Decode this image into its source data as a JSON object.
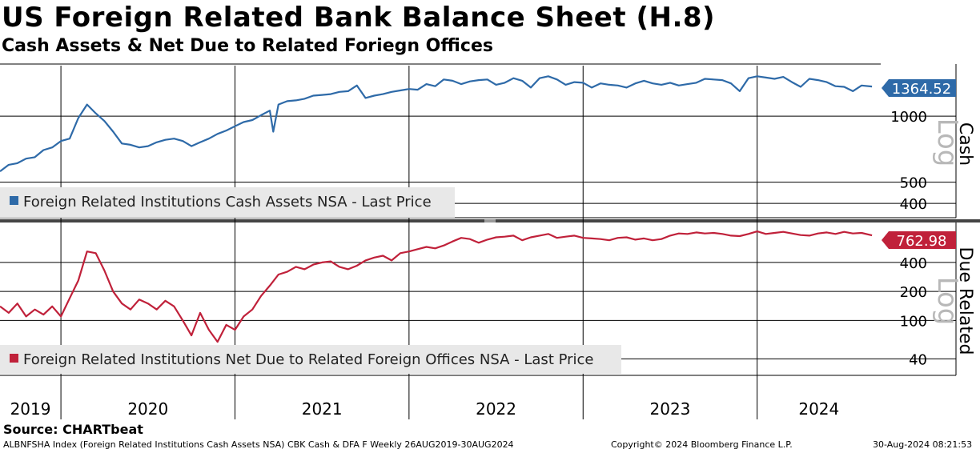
{
  "header": {
    "title": "US Foreign Related Bank Balance Sheet (H.8)",
    "subtitle": "Cash Assets & Net Due to Related Foriegn Offices"
  },
  "footer": {
    "source": "Source: CHARTbeat",
    "index_info": "ALBNFSHA Index (Foreign Related Institutions Cash Assets NSA) CBK Cash & DFA F  Weekly 26AUG2019-30AUG2024",
    "copyright": "Copyright© 2024 Bloomberg Finance L.P.",
    "timestamp": "30-Aug-2024 08:21:53"
  },
  "colors": {
    "cash": "#2e6aa8",
    "due": "#c0213a"
  },
  "chart_data": [
    {
      "type": "line",
      "panel": "Cash",
      "scale": "Log",
      "ylim": [
        350,
        1700
      ],
      "y_ticks": [
        400,
        500,
        1000
      ],
      "legend": "Foreign Related Institutions Cash Assets NSA - Last Price",
      "last_label": "1364.52",
      "x_ticks": [
        "2019",
        "2020",
        "2021",
        "2022",
        "2023",
        "2024"
      ],
      "x": [
        2019.65,
        2019.7,
        2019.75,
        2019.8,
        2019.85,
        2019.9,
        2019.95,
        2020.0,
        2020.05,
        2020.1,
        2020.15,
        2020.2,
        2020.25,
        2020.3,
        2020.35,
        2020.4,
        2020.45,
        2020.5,
        2020.55,
        2020.6,
        2020.65,
        2020.7,
        2020.75,
        2020.8,
        2020.85,
        2020.9,
        2020.95,
        2021.0,
        2021.05,
        2021.1,
        2021.15,
        2021.2,
        2021.22,
        2021.25,
        2021.3,
        2021.35,
        2021.4,
        2021.45,
        2021.5,
        2021.55,
        2021.6,
        2021.65,
        2021.7,
        2021.75,
        2021.8,
        2021.85,
        2021.9,
        2021.95,
        2022.0,
        2022.05,
        2022.1,
        2022.15,
        2022.2,
        2022.25,
        2022.3,
        2022.35,
        2022.4,
        2022.45,
        2022.5,
        2022.55,
        2022.6,
        2022.65,
        2022.7,
        2022.75,
        2022.8,
        2022.85,
        2022.9,
        2022.95,
        2023.0,
        2023.05,
        2023.1,
        2023.15,
        2023.2,
        2023.25,
        2023.3,
        2023.35,
        2023.4,
        2023.45,
        2023.5,
        2023.55,
        2023.6,
        2023.65,
        2023.7,
        2023.75,
        2023.8,
        2023.85,
        2023.9,
        2023.95,
        2024.0,
        2024.05,
        2024.1,
        2024.15,
        2024.2,
        2024.25,
        2024.3,
        2024.35,
        2024.4,
        2024.45,
        2024.5,
        2024.55,
        2024.6,
        2024.66
      ],
      "values": [
        560,
        600,
        610,
        640,
        650,
        700,
        720,
        770,
        790,
        980,
        1130,
        1030,
        950,
        850,
        750,
        740,
        720,
        730,
        760,
        780,
        790,
        770,
        730,
        760,
        790,
        830,
        860,
        900,
        940,
        960,
        1010,
        1060,
        850,
        1130,
        1170,
        1180,
        1200,
        1240,
        1250,
        1260,
        1290,
        1300,
        1380,
        1210,
        1240,
        1260,
        1290,
        1310,
        1330,
        1320,
        1400,
        1370,
        1470,
        1450,
        1400,
        1440,
        1460,
        1470,
        1390,
        1420,
        1490,
        1450,
        1350,
        1490,
        1520,
        1470,
        1390,
        1430,
        1420,
        1350,
        1410,
        1390,
        1380,
        1350,
        1410,
        1450,
        1410,
        1390,
        1420,
        1380,
        1400,
        1420,
        1480,
        1470,
        1460,
        1410,
        1300,
        1490,
        1520,
        1500,
        1480,
        1510,
        1430,
        1360,
        1480,
        1460,
        1430,
        1370,
        1360,
        1300,
        1380,
        1364.52
      ]
    },
    {
      "type": "line",
      "panel": "Due Related",
      "scale": "Log",
      "ylim": [
        28,
        1000
      ],
      "y_ticks": [
        40,
        100,
        200,
        400
      ],
      "legend": "Foreign Related Institutions Net Due to Related Foreign Offices NSA - Last Price",
      "last_label": "762.98",
      "x_ticks": [
        "2019",
        "2020",
        "2021",
        "2022",
        "2023",
        "2024"
      ],
      "x": [
        2019.65,
        2019.7,
        2019.75,
        2019.8,
        2019.85,
        2019.9,
        2019.95,
        2020.0,
        2020.05,
        2020.1,
        2020.15,
        2020.2,
        2020.25,
        2020.3,
        2020.35,
        2020.4,
        2020.45,
        2020.5,
        2020.55,
        2020.6,
        2020.65,
        2020.7,
        2020.75,
        2020.8,
        2020.85,
        2020.9,
        2020.95,
        2021.0,
        2021.05,
        2021.1,
        2021.15,
        2021.2,
        2021.25,
        2021.3,
        2021.35,
        2021.4,
        2021.45,
        2021.5,
        2021.55,
        2021.6,
        2021.65,
        2021.7,
        2021.75,
        2021.8,
        2021.85,
        2021.9,
        2021.95,
        2022.0,
        2022.05,
        2022.1,
        2022.15,
        2022.2,
        2022.25,
        2022.3,
        2022.35,
        2022.4,
        2022.45,
        2022.5,
        2022.55,
        2022.6,
        2022.65,
        2022.7,
        2022.75,
        2022.8,
        2022.85,
        2022.9,
        2022.95,
        2023.0,
        2023.05,
        2023.1,
        2023.15,
        2023.2,
        2023.25,
        2023.3,
        2023.35,
        2023.4,
        2023.45,
        2023.5,
        2023.55,
        2023.6,
        2023.65,
        2023.7,
        2023.75,
        2023.8,
        2023.85,
        2023.9,
        2023.95,
        2024.0,
        2024.05,
        2024.1,
        2024.15,
        2024.2,
        2024.25,
        2024.3,
        2024.35,
        2024.4,
        2024.45,
        2024.5,
        2024.55,
        2024.6,
        2024.66
      ],
      "values": [
        140,
        120,
        150,
        110,
        130,
        115,
        140,
        110,
        170,
        260,
        520,
        500,
        330,
        200,
        150,
        130,
        165,
        150,
        130,
        160,
        140,
        100,
        70,
        120,
        80,
        60,
        90,
        80,
        110,
        130,
        180,
        230,
        300,
        320,
        360,
        340,
        380,
        400,
        410,
        360,
        340,
        370,
        420,
        450,
        470,
        420,
        500,
        520,
        550,
        580,
        560,
        600,
        660,
        720,
        700,
        640,
        690,
        730,
        740,
        760,
        680,
        730,
        760,
        790,
        720,
        740,
        760,
        720,
        710,
        700,
        680,
        720,
        730,
        690,
        710,
        680,
        700,
        760,
        800,
        790,
        820,
        800,
        810,
        790,
        760,
        750,
        790,
        840,
        790,
        810,
        830,
        800,
        770,
        760,
        800,
        820,
        790,
        830,
        800,
        810,
        762.98
      ]
    }
  ]
}
